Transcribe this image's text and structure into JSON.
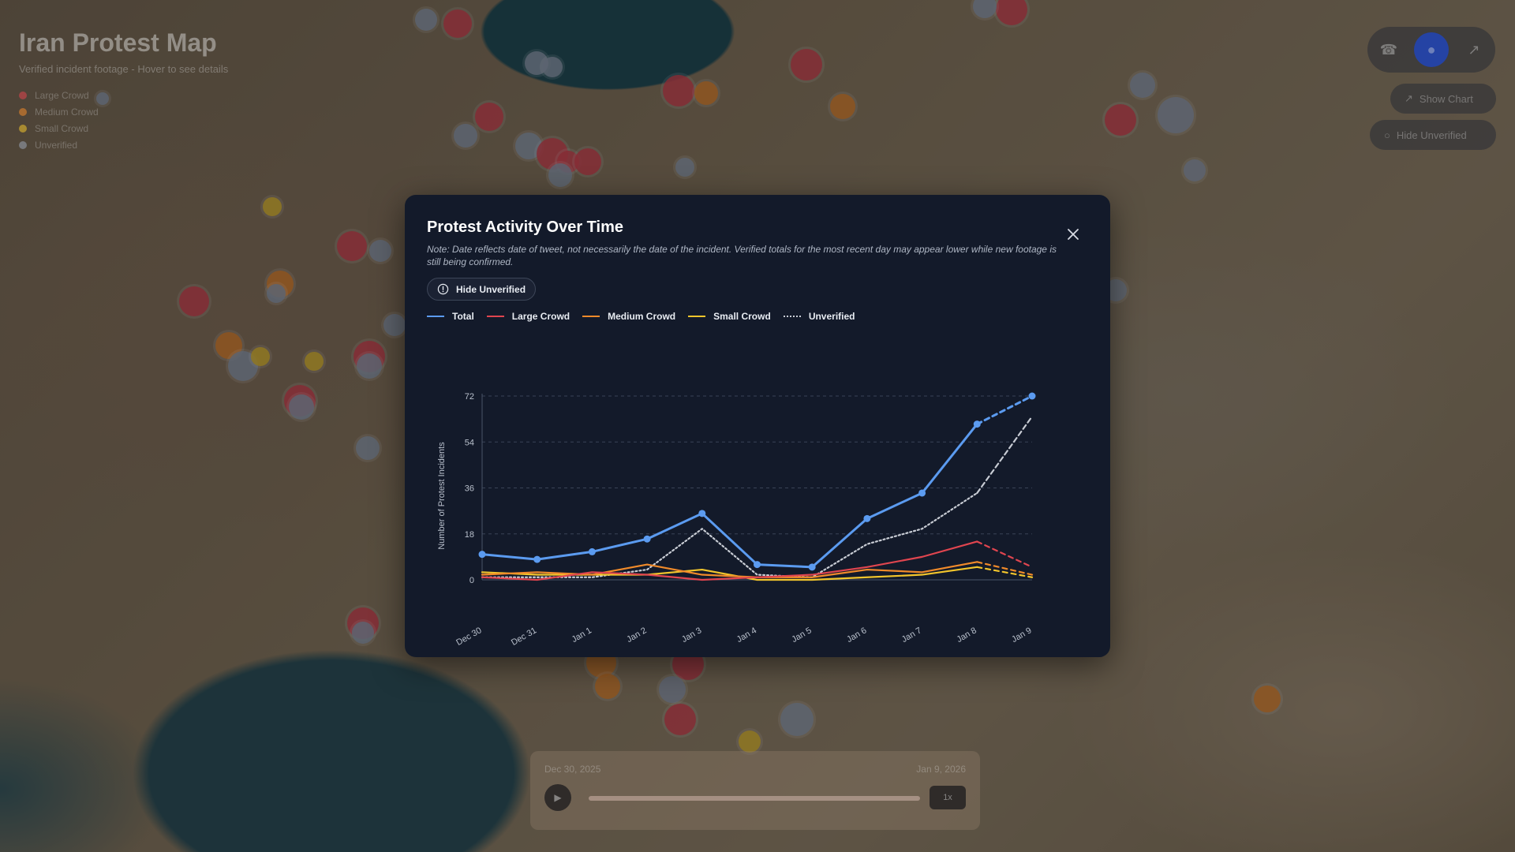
{
  "map": {
    "title": "Iran Protest Map",
    "subtitle": "Verified incident footage - Hover to see details",
    "legend": [
      {
        "label": "Large Crowd",
        "color": "#e0454f"
      },
      {
        "label": "Medium Crowd",
        "color": "#f08a2a"
      },
      {
        "label": "Small Crowd",
        "color": "#f2c52c"
      },
      {
        "label": "Unverified",
        "color": "#9aa4b4"
      }
    ],
    "show_chart_label": "Show Chart",
    "hide_unverified_label": "Hide Unverified",
    "timeline_start": "Dec 30, 2025",
    "timeline_end": "Jan 9, 2026",
    "speed_label": "1x",
    "view_icons": [
      "phone-icon",
      "globe-icon",
      "chart-icon"
    ]
  },
  "modal": {
    "title": "Protest Activity Over Time",
    "note": "Note: Date reflects date of tweet, not necessarily the date of the incident. Verified totals for the most recent day may appear lower while new footage is still being confirmed.",
    "hide_unverified_label": "Hide Unverified",
    "close_icon": "close-icon",
    "info_icon": "info-icon"
  },
  "chart_data": {
    "type": "line",
    "title": "",
    "xlabel": "",
    "ylabel": "Number of Protest Incidents",
    "categories": [
      "Dec 30",
      "Dec 31",
      "Jan 1",
      "Jan 2",
      "Jan 3",
      "Jan 4",
      "Jan 5",
      "Jan 6",
      "Jan 7",
      "Jan 8",
      "Jan 9"
    ],
    "ylim": [
      0,
      72
    ],
    "yticks": [
      0,
      18,
      36,
      54,
      72
    ],
    "grid": true,
    "legend_position": "top-left",
    "series": [
      {
        "name": "Total",
        "color": "#5b9bf0",
        "style": "solid",
        "markers": true,
        "dashed_last_segment": true,
        "values": [
          10,
          8,
          11,
          16,
          26,
          6,
          5,
          24,
          34,
          61,
          72
        ]
      },
      {
        "name": "Large Crowd",
        "color": "#e0454f",
        "style": "solid",
        "markers": false,
        "dashed_last_segment": true,
        "values": [
          1,
          0,
          3,
          2,
          0,
          1,
          2,
          5,
          9,
          15,
          5
        ]
      },
      {
        "name": "Medium Crowd",
        "color": "#f08a2a",
        "style": "solid",
        "markers": false,
        "dashed_last_segment": true,
        "values": [
          2,
          3,
          2,
          6,
          2,
          1,
          1,
          4,
          3,
          7,
          2
        ]
      },
      {
        "name": "Small Crowd",
        "color": "#f2c52c",
        "style": "solid",
        "markers": false,
        "dashed_last_segment": true,
        "values": [
          3,
          2,
          2,
          2,
          4,
          0,
          0,
          1,
          2,
          5,
          1
        ]
      },
      {
        "name": "Unverified",
        "color": "#c8ccd4",
        "style": "dotted",
        "markers": false,
        "dashed_last_segment": true,
        "values": [
          1,
          1,
          1,
          4,
          20,
          2,
          1,
          14,
          20,
          34,
          64
        ]
      }
    ]
  }
}
